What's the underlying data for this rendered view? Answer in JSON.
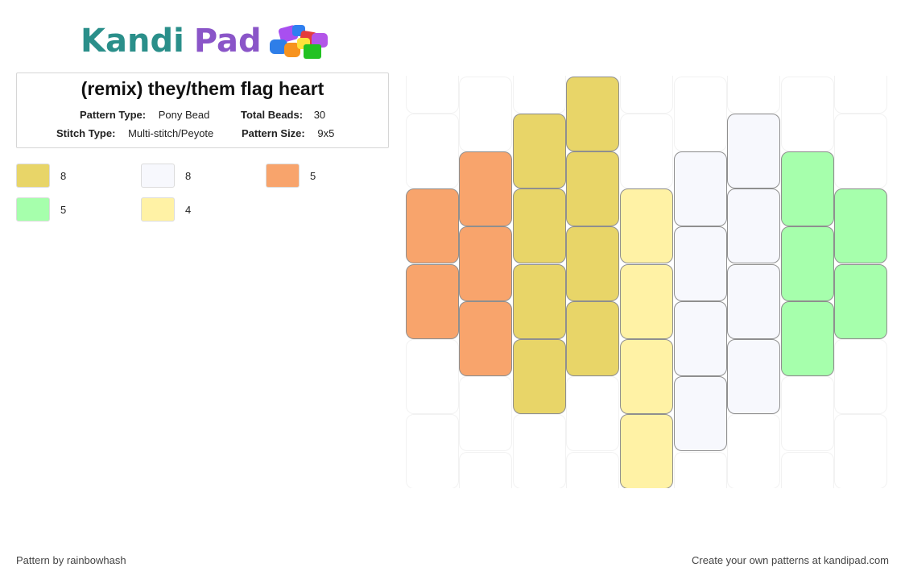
{
  "brand": {
    "name_part1": "Kandi",
    "name_part2": "Pad",
    "kandi_color": "#2a8f8a",
    "pad_color": "#8a55c8"
  },
  "pattern": {
    "title": "(remix) they/them flag heart",
    "type_label": "Pattern Type:",
    "type_value": "Pony Bead",
    "total_label": "Total Beads:",
    "total_value": "30",
    "stitch_label": "Stitch Type:",
    "stitch_value": "Multi-stitch/Peyote",
    "size_label": "Pattern Size:",
    "size_value": "9x5"
  },
  "palette": [
    {
      "color": "#e8d568",
      "count": "8"
    },
    {
      "color": "#f7f8fd",
      "count": "8"
    },
    {
      "color": "#f8a46c",
      "count": "5"
    },
    {
      "color": "#a6ffac",
      "count": "5"
    },
    {
      "color": "#fff2a5",
      "count": "4"
    }
  ],
  "grid": {
    "columns": 9,
    "rows": 5,
    "column_offsets": [
      1,
      0,
      1,
      0,
      1,
      0,
      1,
      0,
      1
    ],
    "cells": [
      [
        "",
        "#f8a46c",
        "#f8a46c",
        "",
        ""
      ],
      [
        "",
        "#f8a46c",
        "#f8a46c",
        "#f8a46c",
        ""
      ],
      [
        "#e8d568",
        "#e8d568",
        "#e8d568",
        "#e8d568",
        ""
      ],
      [
        "#e8d568",
        "#e8d568",
        "#e8d568",
        "#e8d568",
        ""
      ],
      [
        "",
        "#fff2a5",
        "#fff2a5",
        "#fff2a5",
        "#fff2a5"
      ],
      [
        "",
        "#f7f8fd",
        "#f7f8fd",
        "#f7f8fd",
        "#f7f8fd"
      ],
      [
        "#f7f8fd",
        "#f7f8fd",
        "#f7f8fd",
        "#f7f8fd",
        ""
      ],
      [
        "",
        "#a6ffac",
        "#a6ffac",
        "#a6ffac",
        ""
      ],
      [
        "",
        "#a6ffac",
        "#a6ffac",
        "",
        ""
      ]
    ]
  },
  "footer": {
    "author": "Pattern by rainbowhash",
    "cta": "Create your own patterns at kandipad.com"
  }
}
